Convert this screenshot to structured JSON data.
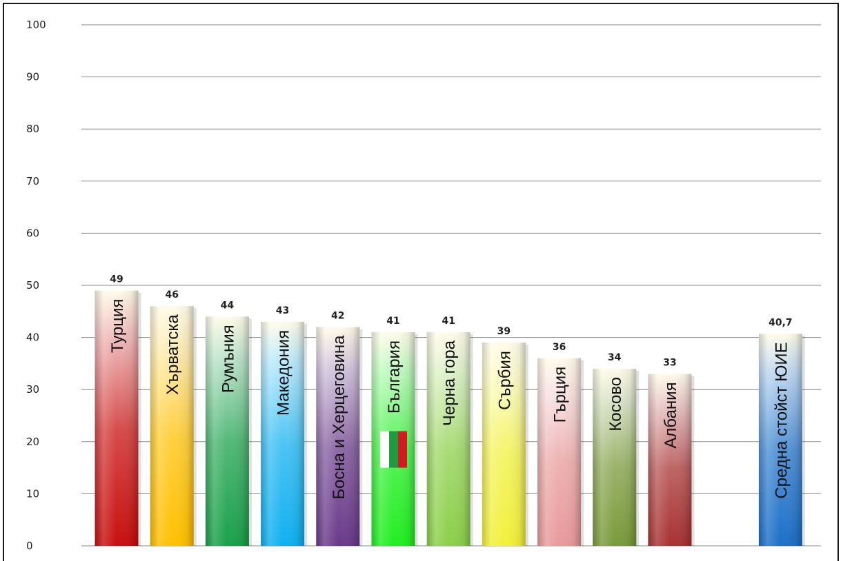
{
  "chart_data": {
    "type": "bar",
    "categories": [
      "Турция",
      "Хърватска",
      "Румъния",
      "Македония",
      "Босна и Херцеговина",
      "България",
      "Черна гора",
      "Сърбия",
      "Гърция",
      "Косово",
      "Албания",
      "Средна стойст ЮИЕ"
    ],
    "values": [
      49,
      46,
      44,
      43,
      42,
      41,
      41,
      39,
      36,
      34,
      33,
      40.7
    ],
    "value_labels": [
      "49",
      "46",
      "44",
      "43",
      "42",
      "41",
      "41",
      "39",
      "36",
      "34",
      "33",
      "40,7"
    ],
    "ylim": [
      0,
      100
    ],
    "yticks": [
      0,
      10,
      20,
      30,
      40,
      50,
      60,
      70,
      80,
      90,
      100
    ],
    "grid": true,
    "bar_colors": [
      "#c80f0f",
      "#ffc000",
      "#1aa04a",
      "#10b0f0",
      "#6a3a8a",
      "#22ee22",
      "#8ccf4a",
      "#f2f03a",
      "#e89a9a",
      "#7a9a3a",
      "#a83232",
      "#1c6fc8"
    ],
    "title": "",
    "xlabel": "",
    "ylabel": ""
  }
}
